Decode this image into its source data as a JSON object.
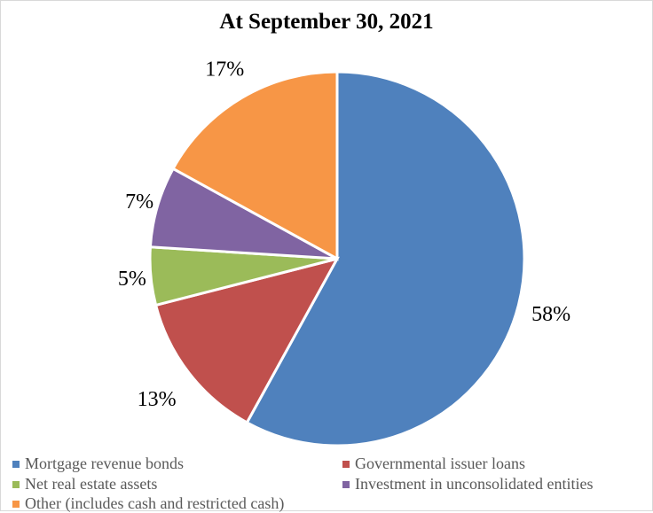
{
  "chart_data": {
    "type": "pie",
    "title": "At September 30, 2021",
    "slices": [
      {
        "label": "Mortgage revenue bonds",
        "value": 58,
        "display": "58%",
        "color": "#4F81BD"
      },
      {
        "label": "Governmental issuer loans",
        "value": 13,
        "display": "13%",
        "color": "#C0504D"
      },
      {
        "label": "Net real estate assets",
        "value": 5,
        "display": "5%",
        "color": "#9BBB59"
      },
      {
        "label": "Investment in unconsolidated entities",
        "value": 7,
        "display": "7%",
        "color": "#8064A2"
      },
      {
        "label": "Other (includes cash and restricted cash)",
        "value": 17,
        "display": "17%",
        "color": "#F79646"
      }
    ],
    "legend_position": "bottom"
  }
}
